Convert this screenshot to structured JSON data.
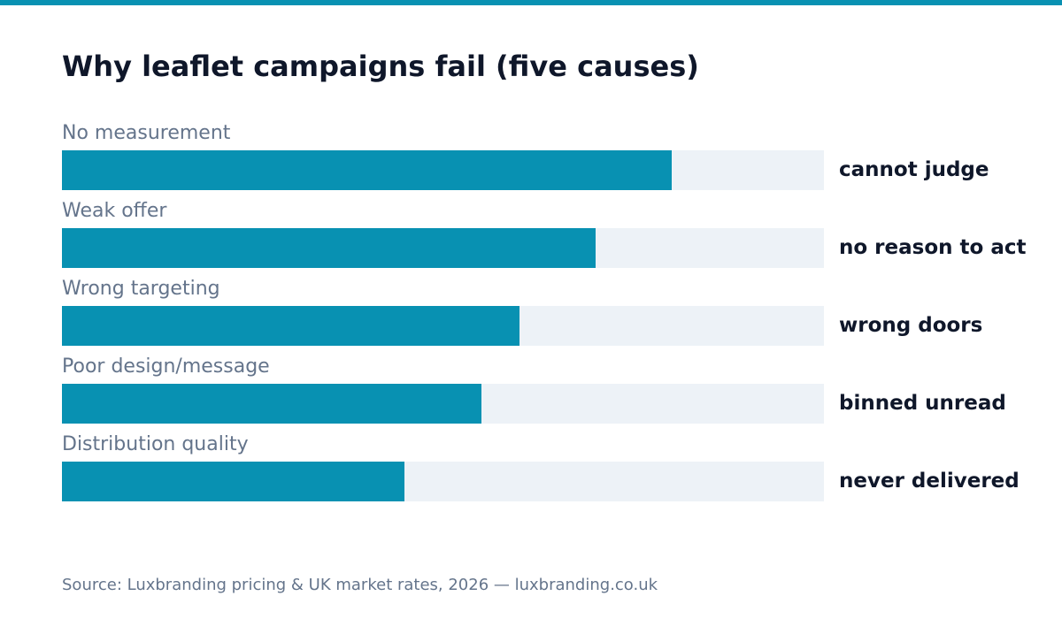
{
  "title": "Why leaflet campaigns fail (five causes)",
  "source": "Source: Luxbranding pricing & UK market rates, 2026 — luxbranding.co.uk",
  "colors": {
    "accent": "#0891b2",
    "track": "#edf2f7",
    "text": "#0f172a",
    "muted": "#64748b"
  },
  "chart_data": {
    "type": "bar",
    "orientation": "horizontal",
    "title": "Why leaflet campaigns fail (five causes)",
    "categories": [
      "No measurement",
      "Weak offer",
      "Wrong targeting",
      "Poor design/message",
      "Distribution quality"
    ],
    "values": [
      80,
      70,
      60,
      55,
      45
    ],
    "xlim": [
      0,
      100
    ],
    "annotations": [
      "cannot judge",
      "no reason to act",
      "wrong doors",
      "binned unread",
      "never delivered"
    ],
    "grid": false,
    "legend": "none"
  }
}
